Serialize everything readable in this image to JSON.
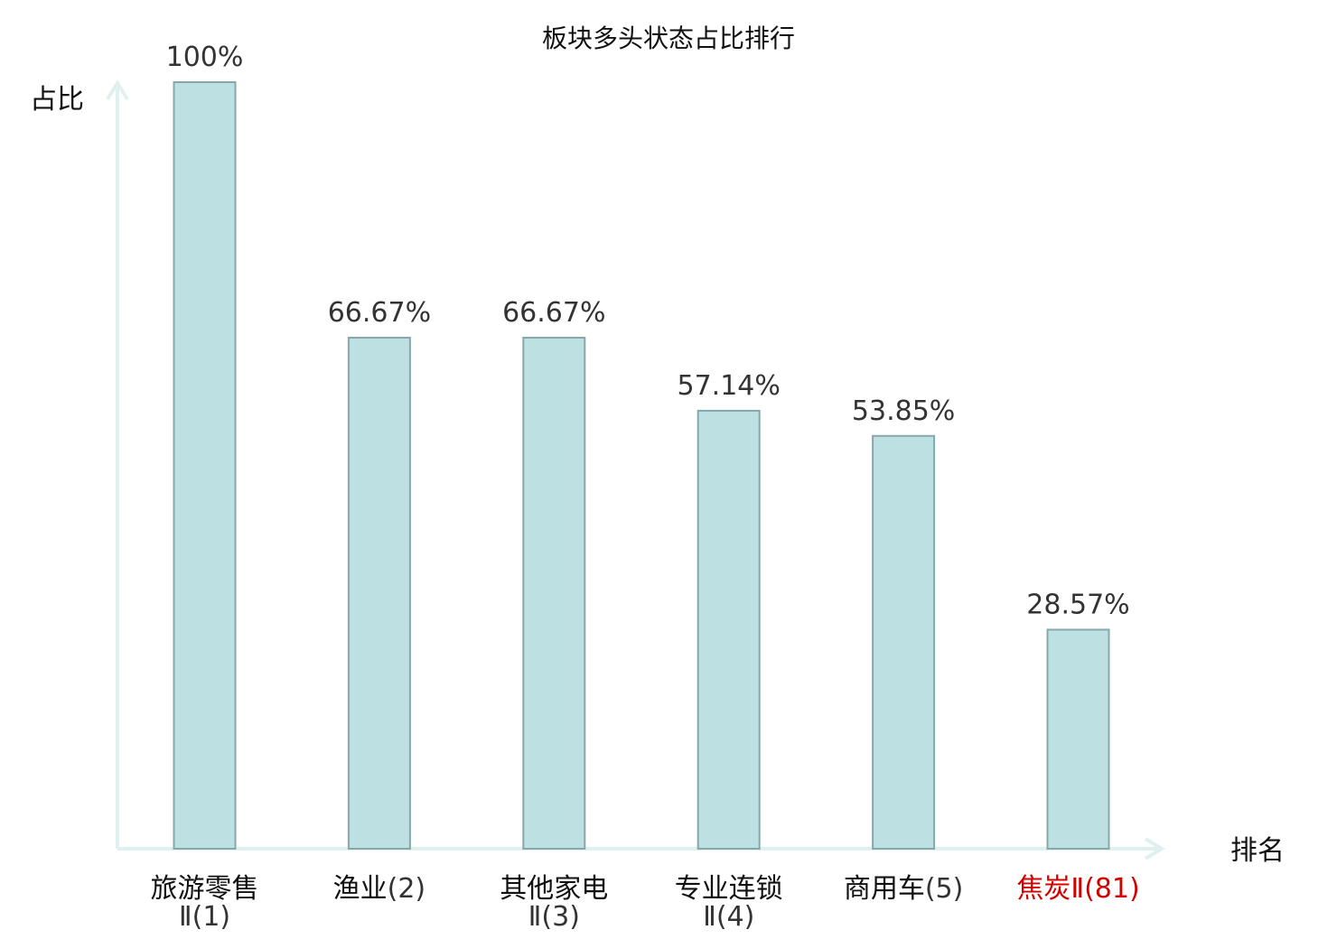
{
  "chart_data": {
    "type": "bar",
    "title": "板块多头状态占比排行",
    "ylabel": "占比",
    "xlabel": "排名",
    "ylim": [
      0,
      100
    ],
    "grid": false,
    "legend": "none",
    "categories": [
      {
        "name": "旅游零售",
        "rank": "Ⅱ(1)",
        "highlight": false
      },
      {
        "name": "渔业",
        "rank": "(2)",
        "highlight": false
      },
      {
        "name": "其他家电",
        "rank": "Ⅱ(3)",
        "highlight": false
      },
      {
        "name": "专业连锁",
        "rank": "Ⅱ(4)",
        "highlight": false
      },
      {
        "name": "商用车",
        "rank": "(5)",
        "highlight": false
      },
      {
        "name": "焦炭",
        "rank": "Ⅱ(81)",
        "highlight": true
      }
    ],
    "values": [
      100,
      66.67,
      66.67,
      57.14,
      53.85,
      28.57
    ],
    "value_labels": [
      "100%",
      "66.67%",
      "66.67%",
      "57.14%",
      "53.85%",
      "28.57%"
    ],
    "colors": {
      "bar_fill": "#bde0e3",
      "bar_stroke": "#88a7aa",
      "axis": "#dff1ee",
      "text": "#111111",
      "rank_text": "#333333",
      "highlight": "#d40000"
    }
  }
}
